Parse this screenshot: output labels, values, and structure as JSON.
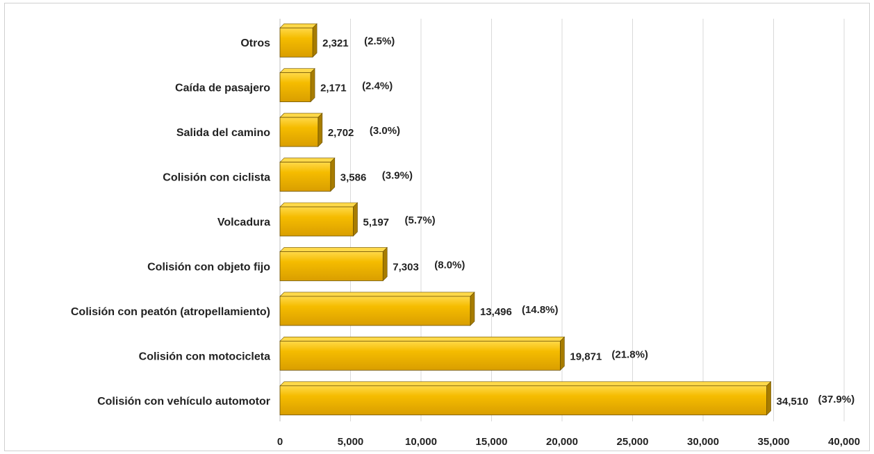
{
  "chart_data": {
    "type": "bar",
    "orientation": "horizontal",
    "categories": [
      "Colisión con vehículo automotor",
      "Colisión con motocicleta",
      "Colisión con peatón (atropellamiento)",
      "Colisión con objeto fijo",
      "Volcadura",
      "Colisión con ciclista",
      "Salida del camino",
      "Caída de pasajero",
      "Otros"
    ],
    "values": [
      34510,
      19871,
      13496,
      7303,
      5197,
      3586,
      2702,
      2171,
      2321
    ],
    "value_labels": [
      "34,510",
      "19,871",
      "13,496",
      "7,303",
      "5,197",
      "3,586",
      "2,702",
      "2,171",
      "2,321"
    ],
    "percent_labels": [
      "(37.9%)",
      "(21.8%)",
      "(14.8%)",
      "(8.0%)",
      "(5.7%)",
      "(3.9%)",
      "(3.0%)",
      "(2.4%)",
      "(2.5%)"
    ],
    "x_ticks": [
      "0",
      "5,000",
      "10,000",
      "15,000",
      "20,000",
      "25,000",
      "30,000",
      "35,000",
      "40,000"
    ],
    "xlim": [
      0,
      40000
    ],
    "grid": true,
    "title": "",
    "xlabel": "",
    "ylabel": "",
    "colors": {
      "bar_front": "#f5bc00",
      "bar_top": "#ffd94a",
      "bar_side": "#a77c00",
      "bar_edge": "#6b5000",
      "grid": "#d9d9d9"
    }
  }
}
